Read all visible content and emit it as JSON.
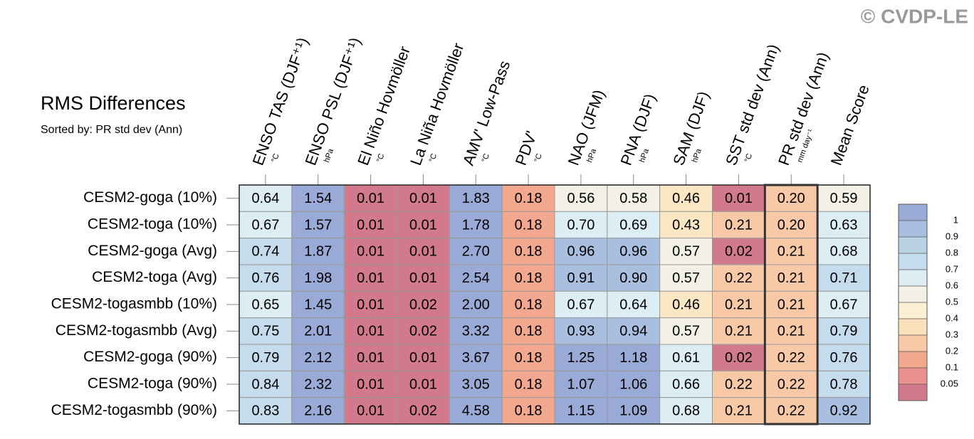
{
  "chart_data": {
    "type": "heatmap",
    "title": "RMS Differences",
    "subtitle": "Sorted by: PR std dev (Ann)",
    "annotation": "© CVDP-LE",
    "columns": [
      "ENSO TAS (DJF⁺¹)",
      "ENSO PSL (DJF⁺¹)",
      "El Niño Hovmöller",
      "La Niña Hovmöller",
      "AMV' Low-Pass",
      "PDV'",
      "NAO (JFM)",
      "PNA (DJF)",
      "SAM (DJF)",
      "SST std dev (Ann)",
      "PR std dev (Ann)",
      "Mean Score"
    ],
    "column_units": [
      "°C",
      "hPa",
      "°C",
      "°C",
      "°C",
      "°C",
      "hPa",
      "hPa",
      "hPa",
      "°C",
      "mm day⁻¹",
      null
    ],
    "rows": [
      "CESM2-goga (10%)",
      "CESM2-toga (10%)",
      "CESM2-goga (Avg)",
      "CESM2-toga (Avg)",
      "CESM2-togasmbb (10%)",
      "CESM2-togasmbb (Avg)",
      "CESM2-goga (90%)",
      "CESM2-toga (90%)",
      "CESM2-togasmbb (90%)"
    ],
    "values": [
      [
        0.64,
        1.54,
        0.01,
        0.01,
        1.83,
        0.18,
        0.56,
        0.58,
        0.46,
        0.01,
        0.2,
        0.59
      ],
      [
        0.67,
        1.57,
        0.01,
        0.01,
        1.78,
        0.18,
        0.7,
        0.69,
        0.43,
        0.21,
        0.2,
        0.63
      ],
      [
        0.74,
        1.87,
        0.01,
        0.01,
        2.7,
        0.18,
        0.96,
        0.96,
        0.57,
        0.02,
        0.21,
        0.68
      ],
      [
        0.76,
        1.98,
        0.01,
        0.01,
        2.54,
        0.18,
        0.91,
        0.9,
        0.57,
        0.22,
        0.21,
        0.71
      ],
      [
        0.65,
        1.45,
        0.01,
        0.02,
        2.0,
        0.18,
        0.67,
        0.64,
        0.46,
        0.21,
        0.21,
        0.67
      ],
      [
        0.75,
        2.01,
        0.01,
        0.02,
        3.32,
        0.18,
        0.93,
        0.94,
        0.57,
        0.21,
        0.21,
        0.79
      ],
      [
        0.79,
        2.12,
        0.01,
        0.01,
        3.67,
        0.18,
        1.25,
        1.18,
        0.61,
        0.02,
        0.22,
        0.76
      ],
      [
        0.84,
        2.32,
        0.01,
        0.01,
        3.05,
        0.18,
        1.07,
        1.06,
        0.66,
        0.22,
        0.22,
        0.78
      ],
      [
        0.83,
        2.16,
        0.01,
        0.02,
        4.58,
        0.18,
        1.15,
        1.09,
        0.68,
        0.21,
        0.22,
        0.92
      ]
    ],
    "value_labels": [
      [
        "0.64",
        "1.54",
        "0.01",
        "0.01",
        "1.83",
        "0.18",
        "0.56",
        "0.58",
        "0.46",
        "0.01",
        "0.20",
        "0.59"
      ],
      [
        "0.67",
        "1.57",
        "0.01",
        "0.01",
        "1.78",
        "0.18",
        "0.70",
        "0.69",
        "0.43",
        "0.21",
        "0.20",
        "0.63"
      ],
      [
        "0.74",
        "1.87",
        "0.01",
        "0.01",
        "2.70",
        "0.18",
        "0.96",
        "0.96",
        "0.57",
        "0.02",
        "0.21",
        "0.68"
      ],
      [
        "0.76",
        "1.98",
        "0.01",
        "0.01",
        "2.54",
        "0.18",
        "0.91",
        "0.90",
        "0.57",
        "0.22",
        "0.21",
        "0.71"
      ],
      [
        "0.65",
        "1.45",
        "0.01",
        "0.02",
        "2.00",
        "0.18",
        "0.67",
        "0.64",
        "0.46",
        "0.21",
        "0.21",
        "0.67"
      ],
      [
        "0.75",
        "2.01",
        "0.01",
        "0.02",
        "3.32",
        "0.18",
        "0.93",
        "0.94",
        "0.57",
        "0.21",
        "0.21",
        "0.79"
      ],
      [
        "0.79",
        "2.12",
        "0.01",
        "0.01",
        "3.67",
        "0.18",
        "1.25",
        "1.18",
        "0.61",
        "0.02",
        "0.22",
        "0.76"
      ],
      [
        "0.84",
        "2.32",
        "0.01",
        "0.01",
        "3.05",
        "0.18",
        "1.07",
        "1.06",
        "0.66",
        "0.22",
        "0.22",
        "0.78"
      ],
      [
        "0.83",
        "2.16",
        "0.01",
        "0.02",
        "4.58",
        "0.18",
        "1.15",
        "1.09",
        "0.68",
        "0.21",
        "0.22",
        "0.92"
      ]
    ],
    "cell_colors": [
      [
        "#ddedf4",
        "#9aaad6",
        "#d27a8c",
        "#d27a8c",
        "#9aaad6",
        "#f2a88e",
        "#f3f1e6",
        "#f3f1e6",
        "#fbe6c4",
        "#d27a8c",
        "#f8c9a6",
        "#f3f1e6"
      ],
      [
        "#ddedf4",
        "#9aaad6",
        "#d27a8c",
        "#d27a8c",
        "#9aaad6",
        "#f2a88e",
        "#ddedf4",
        "#ddedf4",
        "#fbe6c4",
        "#f8c9a6",
        "#f8c9a6",
        "#ddedf4"
      ],
      [
        "#c4dcec",
        "#9aaad6",
        "#d27a8c",
        "#d27a8c",
        "#9aaad6",
        "#f2a88e",
        "#a9bfdf",
        "#a9bfdf",
        "#f3f1e6",
        "#d27a8c",
        "#f8c9a6",
        "#ddedf4"
      ],
      [
        "#c4dcec",
        "#9aaad6",
        "#d27a8c",
        "#d27a8c",
        "#9aaad6",
        "#f2a88e",
        "#a9bfdf",
        "#a9bfdf",
        "#f3f1e6",
        "#f8c9a6",
        "#f8c9a6",
        "#c4dcec"
      ],
      [
        "#ddedf4",
        "#9aaad6",
        "#d27a8c",
        "#d27a8c",
        "#9aaad6",
        "#f2a88e",
        "#ddedf4",
        "#ddedf4",
        "#fbe6c4",
        "#f8c9a6",
        "#f8c9a6",
        "#ddedf4"
      ],
      [
        "#c4dcec",
        "#9aaad6",
        "#d27a8c",
        "#d27a8c",
        "#9aaad6",
        "#f2a88e",
        "#a9bfdf",
        "#a9bfdf",
        "#f3f1e6",
        "#f8c9a6",
        "#f8c9a6",
        "#c4dcec"
      ],
      [
        "#c4dcec",
        "#9aaad6",
        "#d27a8c",
        "#d27a8c",
        "#9aaad6",
        "#f2a88e",
        "#9aaad6",
        "#9aaad6",
        "#ddedf4",
        "#d27a8c",
        "#f8c9a6",
        "#c4dcec"
      ],
      [
        "#c4dcec",
        "#9aaad6",
        "#d27a8c",
        "#d27a8c",
        "#9aaad6",
        "#f2a88e",
        "#9aaad6",
        "#9aaad6",
        "#ddedf4",
        "#f8c9a6",
        "#f8c9a6",
        "#c4dcec"
      ],
      [
        "#c4dcec",
        "#9aaad6",
        "#d27a8c",
        "#d27a8c",
        "#9aaad6",
        "#f2a88e",
        "#9aaad6",
        "#9aaad6",
        "#ddedf4",
        "#f8c9a6",
        "#f8c9a6",
        "#a9bfdf"
      ]
    ],
    "highlight_column": 10,
    "colorbar": {
      "ticks": [
        1,
        0.9,
        0.8,
        0.7,
        0.6,
        0.5,
        0.4,
        0.3,
        0.2,
        0.1,
        0.05
      ],
      "colors": [
        "#9aaad6",
        "#a9bfdf",
        "#b9d2e6",
        "#c4dcec",
        "#ddedf4",
        "#f3f1e6",
        "#fbefd2",
        "#fbe0bc",
        "#f8c9a6",
        "#f2a88e",
        "#e8918f",
        "#d27a8c"
      ]
    }
  }
}
